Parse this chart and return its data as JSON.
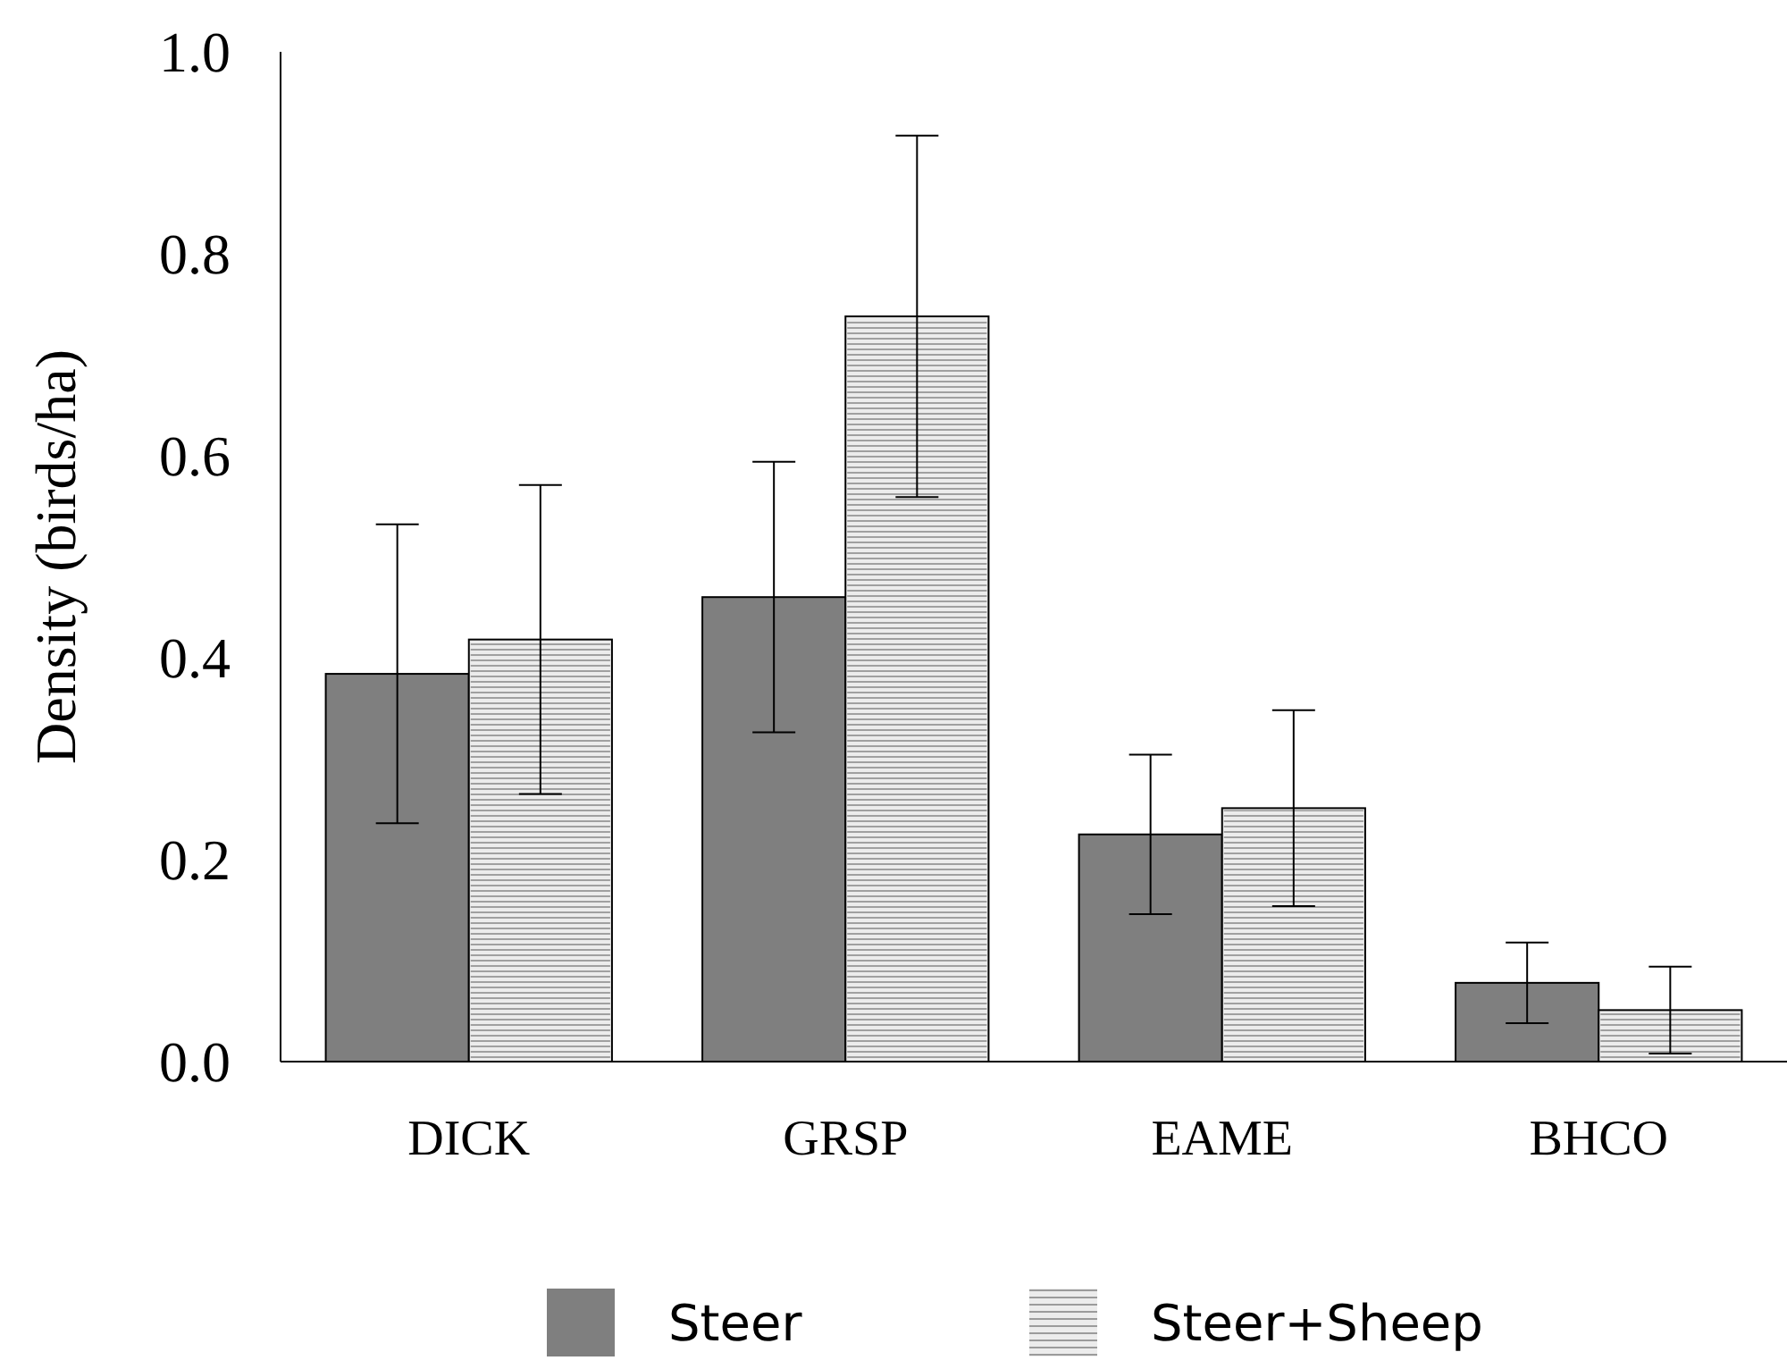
{
  "chart_data": {
    "type": "bar",
    "ylabel": "Density (birds/ha)",
    "categories": [
      "DICK",
      "GRSP",
      "EAME",
      "BHCO"
    ],
    "series": [
      {
        "name": "Steer",
        "color": "#7f7f7f",
        "values": [
          0.384,
          0.46,
          0.225,
          0.078
        ],
        "errors": [
          0.148,
          0.134,
          0.079,
          0.04
        ]
      },
      {
        "name": "Steer+Sheep",
        "color": "#ececec",
        "values": [
          0.418,
          0.738,
          0.251,
          0.051
        ],
        "errors": [
          0.153,
          0.179,
          0.097,
          0.043
        ]
      }
    ],
    "ylim": [
      0,
      1
    ],
    "yticks": [
      {
        "value": 0,
        "label": "0.0"
      },
      {
        "value": 0.2,
        "label": "0.2"
      },
      {
        "value": 0.4,
        "label": "0.4"
      },
      {
        "value": 0.6,
        "label": "0.6"
      },
      {
        "value": 0.8,
        "label": "0.8"
      },
      {
        "value": 1,
        "label": "1.0"
      }
    ],
    "grid": false,
    "legend": "bottom"
  }
}
